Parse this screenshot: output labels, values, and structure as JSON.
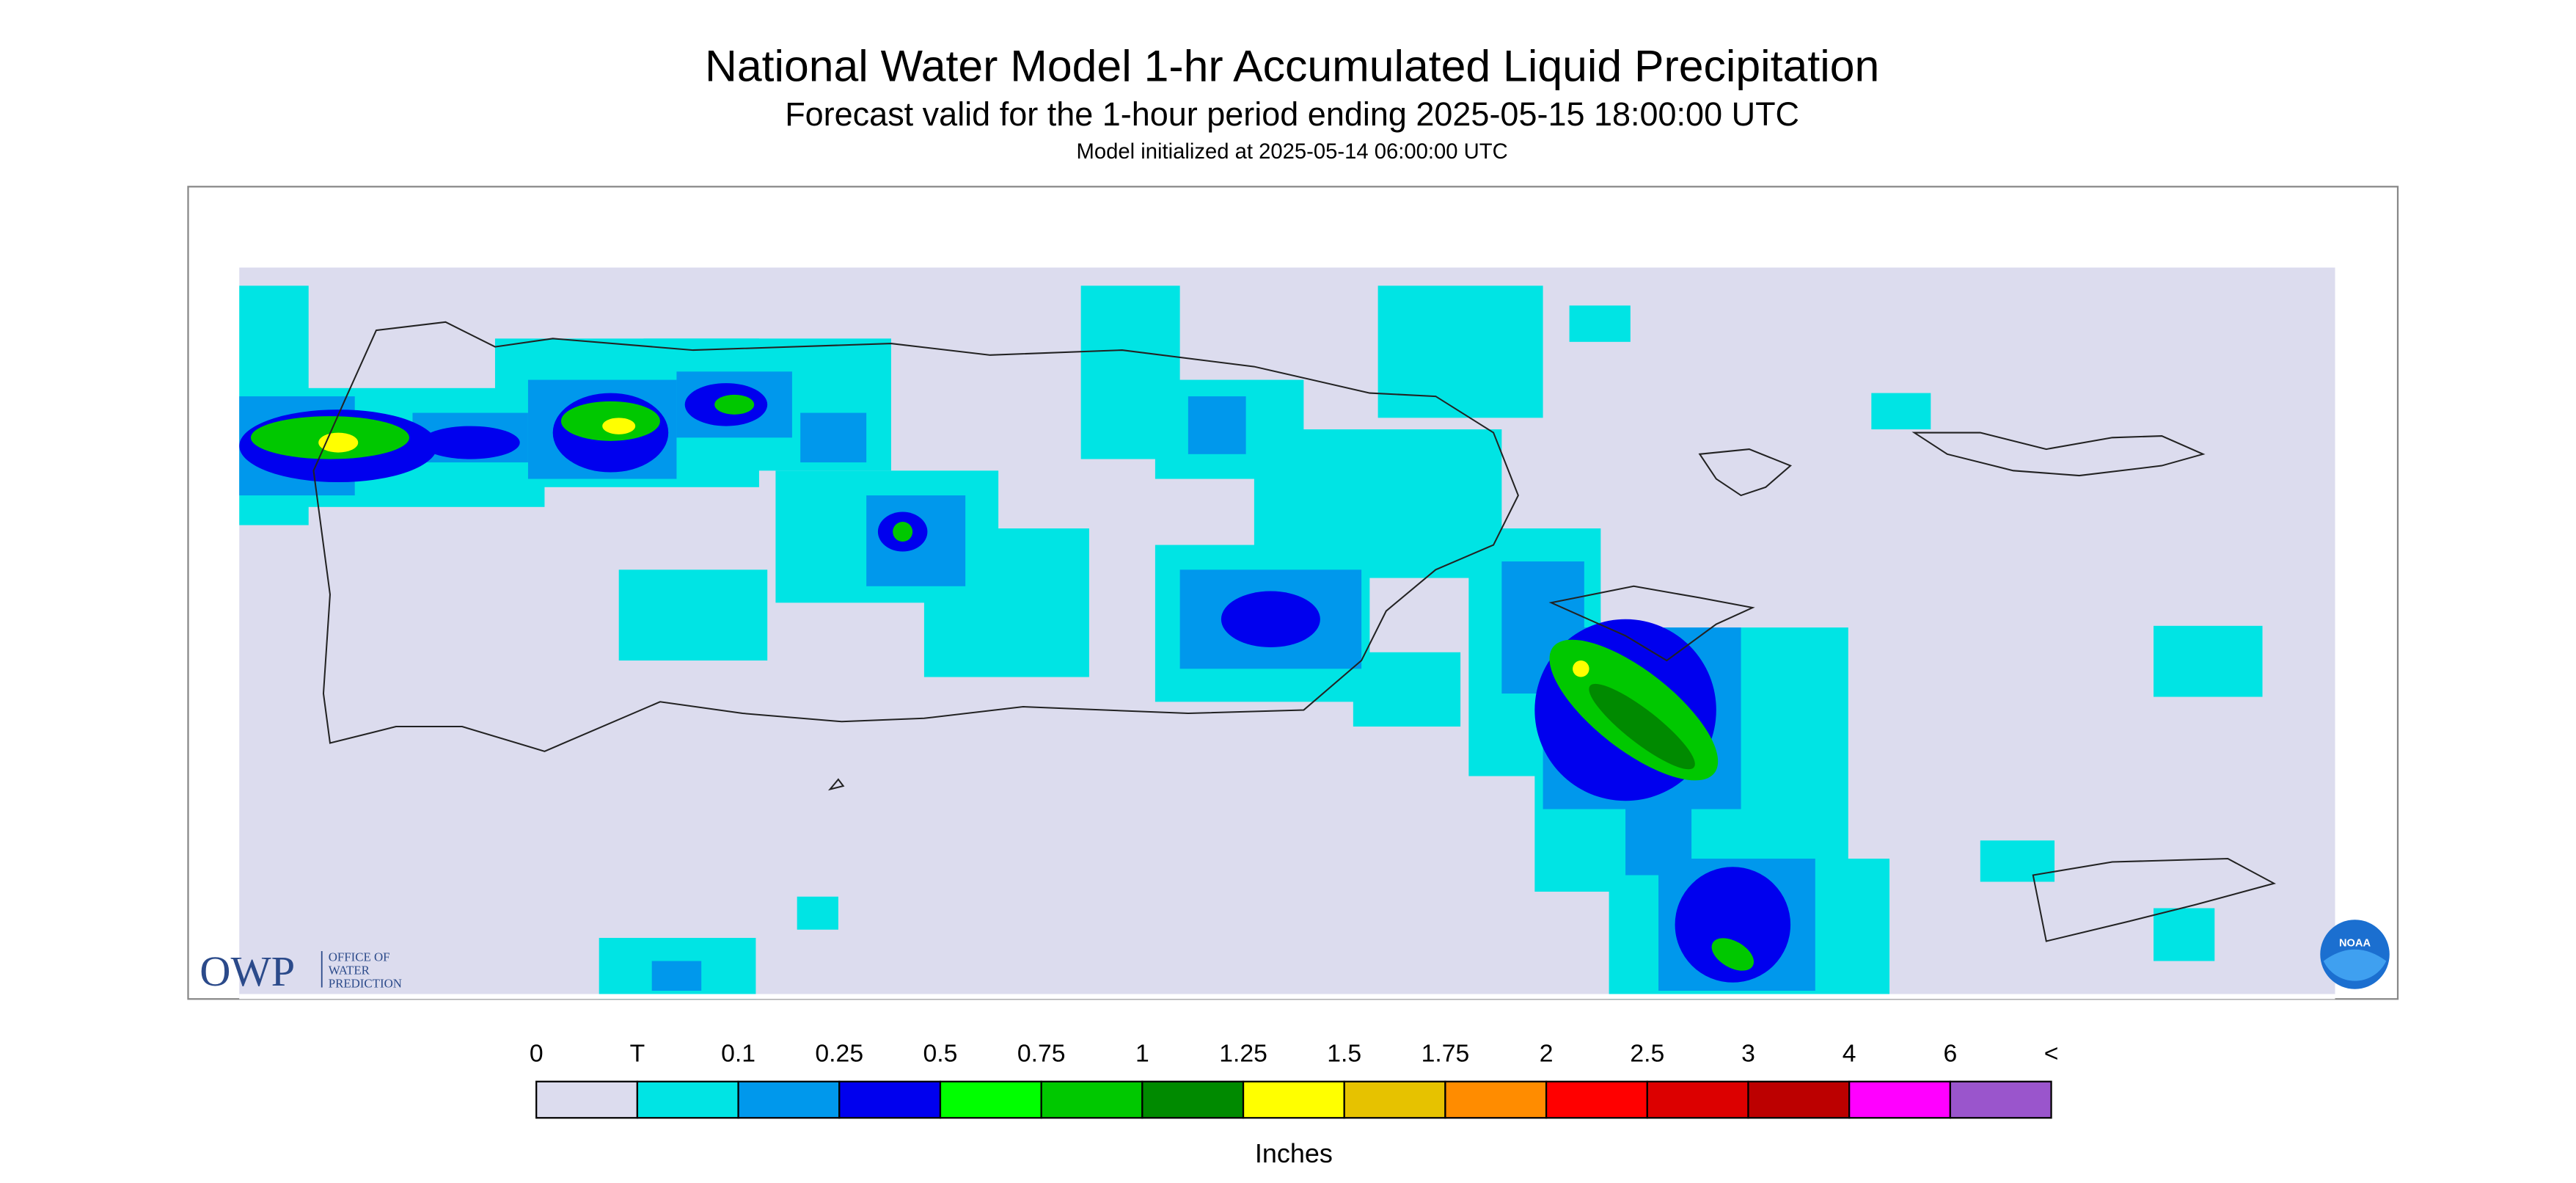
{
  "header": {
    "title": "National Water Model 1-hr Accumulated Liquid Precipitation",
    "subtitle": "Forecast valid for the 1-hour period ending 2025-05-15 18:00:00 UTC",
    "init": "Model initialized at 2025-05-14 06:00:00 UTC"
  },
  "legend": {
    "title": "Inches",
    "labels": [
      "0",
      "T",
      "0.1",
      "0.25",
      "0.5",
      "0.75",
      "1",
      "1.25",
      "1.5",
      "1.75",
      "2",
      "2.5",
      "3",
      "4",
      "6",
      "<"
    ],
    "colors": [
      "#dcdcee",
      "#00e4e4",
      "#0098ec",
      "#0000ee",
      "#00ff00",
      "#00c800",
      "#008a00",
      "#ffff00",
      "#e6c200",
      "#ff8c00",
      "#ff0000",
      "#dc0000",
      "#bc0000",
      "#ff00ff",
      "#9a55cc"
    ]
  },
  "logos": {
    "owp": "OWP",
    "owp_lines": [
      "OFFICE OF",
      "WATER",
      "PREDICTION"
    ],
    "noaa": "NOAA"
  }
}
